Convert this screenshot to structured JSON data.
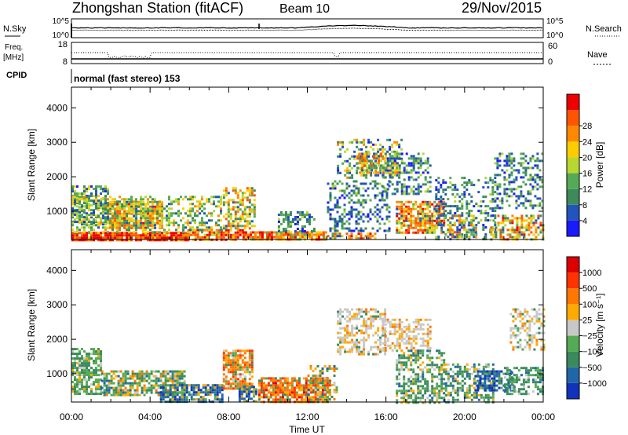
{
  "title": {
    "station": "Zhongshan Station (fitACF)",
    "beam": "Beam 10",
    "date": "29/Nov/2015"
  },
  "status_panels": {
    "nsky_label": "N.Sky",
    "nsearch_label": "N.Search",
    "count_ticks": [
      "10^5",
      "10^0"
    ],
    "freq_label_line1": "Freq.",
    "freq_label_line2": "[MHz]",
    "freq_ticks": [
      "18",
      "8"
    ],
    "nave_label": "Nave",
    "nave_ticks": [
      "60",
      "0"
    ],
    "cpid_label": "CPID",
    "cpid_text": "normal (fast stereo) 153"
  },
  "chart_data": [
    {
      "type": "heatmap",
      "name": "power",
      "ylabel": "Slant Range [km]",
      "ylim": [
        180,
        4600
      ],
      "yticks": [
        1000,
        2000,
        3000,
        4000
      ],
      "xlabel": "Time UT",
      "xticks": [
        "00:00",
        "04:00",
        "08:00",
        "12:00",
        "16:00",
        "20:00",
        "00:00"
      ],
      "colorbar": {
        "label": "Power [dB]",
        "colors": [
          "#1a1aff",
          "#2255bb",
          "#3d8a5a",
          "#55aa55",
          "#b8d830",
          "#ffcc00",
          "#ff8800",
          "#ff5500",
          "#ee0000"
        ],
        "ticks": [
          "4",
          "8",
          "12",
          "16",
          "20",
          "24",
          "28"
        ]
      }
    },
    {
      "type": "heatmap",
      "name": "velocity",
      "ylabel": "Slant Range [km]",
      "ylim": [
        180,
        4600
      ],
      "yticks": [
        1000,
        2000,
        3000,
        4000
      ],
      "xlabel": "Time UT",
      "xticks": [
        "00:00",
        "04:00",
        "08:00",
        "12:00",
        "16:00",
        "20:00",
        "00:00"
      ],
      "colorbar": {
        "label": "Velocity [m s⁻¹]",
        "colors": [
          "#1133bb",
          "#2266aa",
          "#3a8a5c",
          "#55aa55",
          "#c8c8c8",
          "#ffaa00",
          "#ff7700",
          "#ff3300",
          "#dd0000"
        ],
        "ticks": [
          "1000",
          "500",
          "100",
          "25",
          "−25",
          "−100",
          "−500",
          "−1000"
        ]
      }
    }
  ]
}
